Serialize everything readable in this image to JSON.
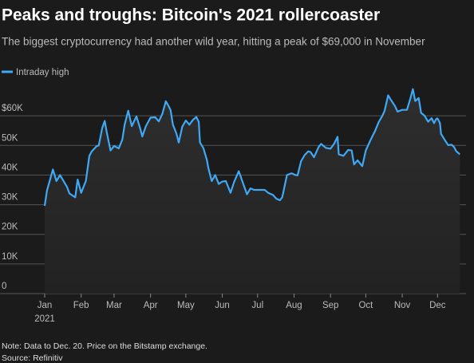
{
  "chart_data": {
    "type": "line",
    "title": "Peaks and troughs: Bitcoin's 2021 rollercoaster",
    "subtitle": "The biggest cryptocurrency had another wild year, hitting a peak of $69,000 in November",
    "note": "Note: Data to Dec. 20. Price on the Bitstamp exchange.",
    "source": "Source: Refinitiv",
    "year_label": "2021",
    "xlim": [
      1,
      366
    ],
    "xticks": [
      {
        "value": 1,
        "label": "Jan"
      },
      {
        "value": 32,
        "label": "Feb"
      },
      {
        "value": 60,
        "label": "Mar"
      },
      {
        "value": 91,
        "label": "Apr"
      },
      {
        "value": 121,
        "label": "May"
      },
      {
        "value": 152,
        "label": "Jun"
      },
      {
        "value": 182,
        "label": "Jul"
      },
      {
        "value": 213,
        "label": "Aug"
      },
      {
        "value": 244,
        "label": "Sep"
      },
      {
        "value": 274,
        "label": "Oct"
      },
      {
        "value": 305,
        "label": "Nov"
      },
      {
        "value": 335,
        "label": "Dec"
      }
    ],
    "ylim": [
      0,
      70000
    ],
    "yticks": [
      0,
      {
        "value": 10000,
        "label": "10K"
      },
      {
        "value": 20000,
        "label": "20K"
      },
      {
        "value": 30000,
        "label": "30K"
      },
      {
        "value": 40000,
        "label": "40K"
      },
      {
        "value": 50000,
        "label": "50K"
      },
      {
        "value": 60000,
        "label": "$60K"
      }
    ],
    "grid": true,
    "x": [
      1,
      3,
      8,
      11,
      14,
      20,
      22,
      27,
      29,
      32,
      36,
      39,
      41,
      45,
      47,
      50,
      52,
      54,
      57,
      60,
      64,
      67,
      69,
      72,
      75,
      79,
      82,
      84,
      87,
      91,
      95,
      98,
      101,
      104,
      106,
      108,
      110,
      113,
      115,
      118,
      121,
      124,
      127,
      130,
      132,
      133,
      136,
      139,
      140,
      143,
      146,
      149,
      152,
      155,
      159,
      162,
      166,
      169,
      173,
      176,
      179,
      182,
      186,
      188,
      191,
      195,
      198,
      201,
      203,
      207,
      211,
      214,
      216,
      219,
      222,
      225,
      227,
      230,
      234,
      236,
      240,
      244,
      247,
      250,
      251,
      255,
      259,
      262,
      264,
      267,
      271,
      274,
      278,
      282,
      285,
      288,
      290,
      293,
      295,
      299,
      301,
      305,
      309,
      312,
      314,
      316,
      319,
      321,
      324,
      327,
      330,
      332,
      334,
      335,
      337,
      338,
      341,
      344,
      347,
      349,
      351,
      354
    ],
    "series": [
      {
        "name": "Intraday high",
        "color": "#3fa9f5",
        "values": [
          29600,
          34800,
          41900,
          38000,
          40000,
          36000,
          33800,
          32500,
          38500,
          34000,
          38000,
          46500,
          48000,
          49700,
          50000,
          56000,
          58300,
          54000,
          48300,
          49800,
          49000,
          52000,
          57000,
          61700,
          56500,
          59800,
          56000,
          53000,
          56500,
          59400,
          59500,
          58100,
          60600,
          64900,
          63500,
          62000,
          57000,
          54000,
          51000,
          56400,
          58400,
          57000,
          58600,
          59600,
          57900,
          51000,
          49000,
          45000,
          42600,
          38000,
          40000,
          37000,
          37800,
          38000,
          34000,
          37600,
          41300,
          38000,
          33500,
          35500,
          35000,
          35000,
          35000,
          35000,
          34000,
          33300,
          32000,
          31500,
          32500,
          40000,
          40600,
          40000,
          39900,
          44700,
          46700,
          48000,
          47800,
          46000,
          49500,
          50500,
          49200,
          48900,
          50500,
          52900,
          47000,
          46500,
          48500,
          48300,
          43600,
          45000,
          43000,
          48300,
          51800,
          55000,
          57900,
          59900,
          61700,
          66900,
          65600,
          63200,
          61400,
          62000,
          62000,
          66000,
          69000,
          65000,
          66000,
          61000,
          60000,
          58000,
          59200,
          57500,
          59000,
          59100,
          57600,
          53900,
          51900,
          50100,
          50200,
          49500,
          48000,
          47000
        ]
      }
    ]
  }
}
